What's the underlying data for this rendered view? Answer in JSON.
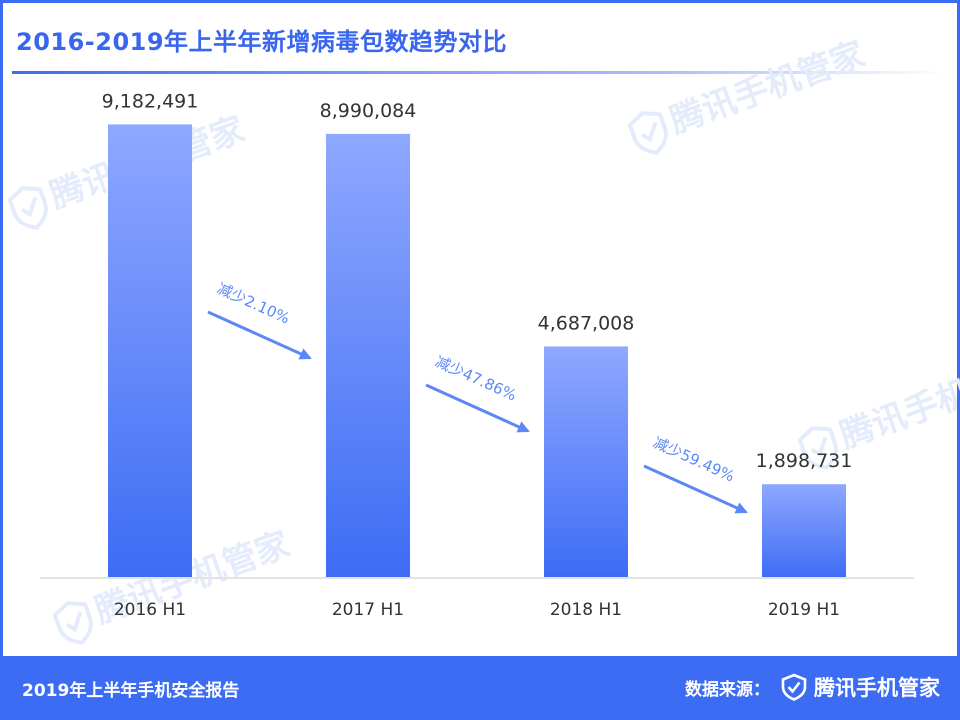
{
  "header": {
    "title": "2016-2019年上半年新增病毒包数趋势对比"
  },
  "chart_data": {
    "type": "bar",
    "title": "2016-2019年上半年新增病毒包数趋势对比",
    "xlabel": "",
    "ylabel": "",
    "categories": [
      "2016 H1",
      "2017 H1",
      "2018 H1",
      "2019 H1"
    ],
    "values": [
      9182491,
      8990084,
      4687008,
      1898731
    ],
    "value_labels": [
      "9,182,491",
      "8,990,084",
      "4,687,008",
      "1,898,731"
    ],
    "ylim": [
      0,
      10000000
    ],
    "grid": false,
    "annotations": [
      {
        "text": "减少2.10%",
        "from": "2016 H1",
        "to": "2017 H1"
      },
      {
        "text": "减少47.86%",
        "from": "2017 H1",
        "to": "2018 H1"
      },
      {
        "text": "减少59.49%",
        "from": "2018 H1",
        "to": "2019 H1"
      }
    ],
    "colors": {
      "bar_top": "#8fa8ff",
      "bar_bottom": "#3d6cf4",
      "arrow": "#5b88f5",
      "axis": "#e3e3e3"
    }
  },
  "watermark": {
    "text": "腾讯手机管家"
  },
  "footer": {
    "report": "2019年上半年手机安全报告",
    "source_label": "数据来源：",
    "brand": "腾讯手机管家",
    "brand_icon": "shield-check-icon"
  },
  "colors": {
    "accent": "#3d6cf4",
    "title": "#3a66ef"
  }
}
